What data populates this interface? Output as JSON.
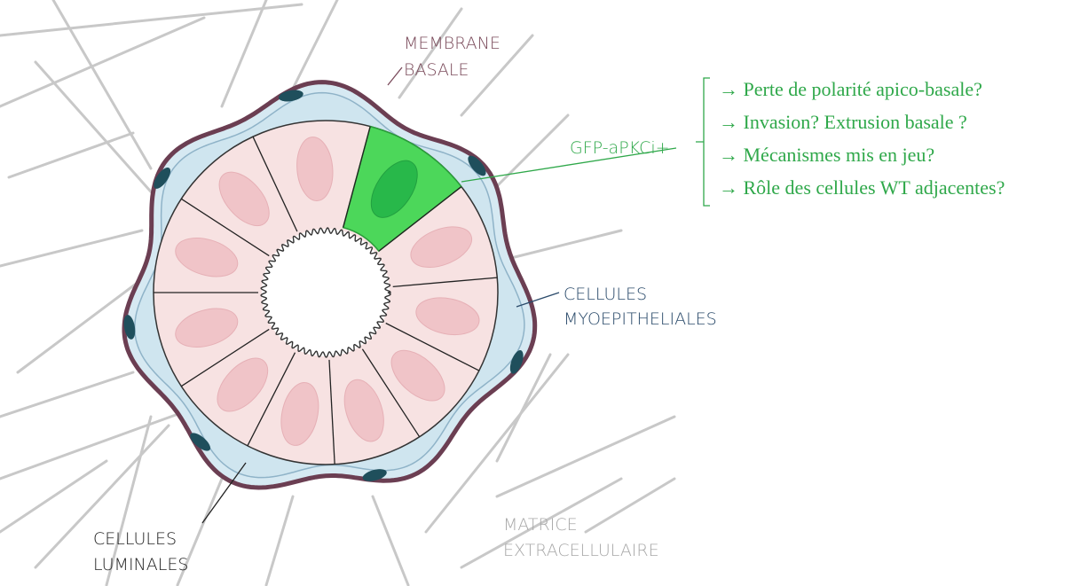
{
  "labels": {
    "basal_membrane": [
      "MEMBRANE",
      "BASALE"
    ],
    "gfp": "GFP-aPKCi+",
    "myoepithelial": [
      "CELLULES",
      "MYOEPITHELIALES"
    ],
    "luminal": [
      "CELLULES",
      "LUMINALES"
    ],
    "matrix": [
      "MATRICE",
      "EXTRACELLULAIRE"
    ]
  },
  "questions": [
    "→ Perte de polarité apico-basale?",
    "→ Invasion? Extrusion basale ?",
    "→ Mécanismes mis en jeu?",
    "→ Rôle des cellules WT adjacentes?"
  ]
}
